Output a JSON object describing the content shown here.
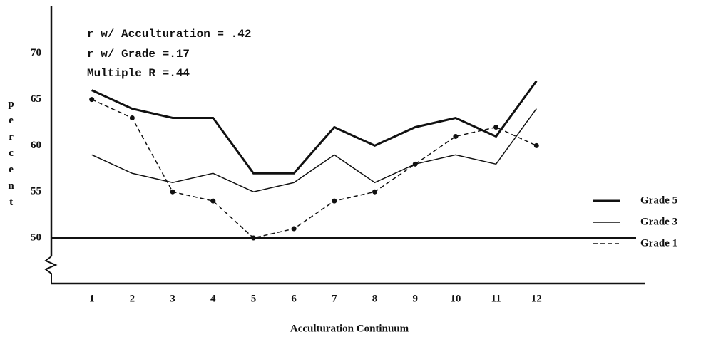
{
  "chart_data": {
    "type": "line",
    "annotations": [
      "r w/ Acculturation = .42",
      "r w/ Grade =.17",
      "Multiple R =.44"
    ],
    "x_label": "Acculturation Continuum",
    "y_label": "percent",
    "x": [
      1,
      2,
      3,
      4,
      5,
      6,
      7,
      8,
      9,
      10,
      11,
      12
    ],
    "xlim": [
      0,
      14.5
    ],
    "xticks": [
      1,
      2,
      3,
      4,
      5,
      6,
      7,
      8,
      9,
      10,
      11,
      12
    ],
    "ylim": [
      50,
      75
    ],
    "yticks": [
      50,
      55,
      60,
      65,
      70
    ],
    "series": [
      {
        "name": "Grade 5",
        "color": "#111111",
        "width": 3,
        "dashed": false,
        "markers": false,
        "values": [
          66,
          64,
          63,
          63,
          57,
          57,
          62,
          60,
          62,
          63,
          61,
          67
        ]
      },
      {
        "name": "Grade 3",
        "color": "#111111",
        "width": 1.5,
        "dashed": false,
        "markers": false,
        "values": [
          59,
          57,
          56,
          57,
          55,
          56,
          59,
          56,
          58,
          59,
          58,
          64
        ]
      },
      {
        "name": "Grade 1",
        "color": "#111111",
        "width": 1.5,
        "dashed": true,
        "markers": true,
        "values": [
          65,
          63,
          55,
          54,
          50,
          51,
          54,
          55,
          58,
          61,
          62,
          60
        ]
      }
    ]
  }
}
